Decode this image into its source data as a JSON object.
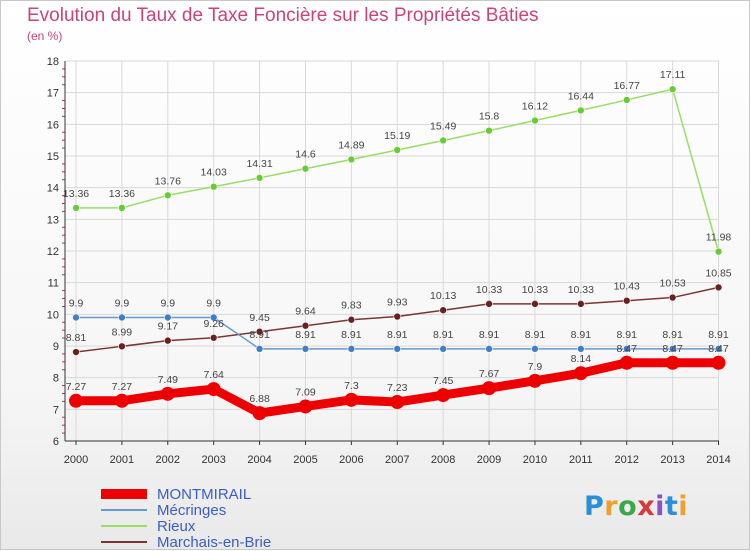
{
  "header": {
    "title": "Evolution du Taux de Taxe Foncière sur les Propriétés Bâties",
    "unit": "(en %)"
  },
  "logo": {
    "text": "Proxiti",
    "colors": [
      "#2a8fd6",
      "#f0a02a",
      "#3aa84a",
      "#d63a3a",
      "#8c4fc8",
      "#2a8fd6",
      "#f0a02a"
    ]
  },
  "colors": {
    "grid": "#d9d9d9",
    "axis": "#333333",
    "title": "#c8447a",
    "legend_text": "#3b5fc0"
  },
  "chart_data": {
    "type": "line",
    "title": "Evolution du Taux de Taxe Foncière sur les Propriétés Bâties",
    "ylabel": "(en %)",
    "xlabel": "",
    "x": [
      "2000",
      "2001",
      "2002",
      "2003",
      "2004",
      "2005",
      "2006",
      "2007",
      "2008",
      "2009",
      "2010",
      "2011",
      "2012",
      "2013",
      "2014"
    ],
    "ylim": [
      6,
      18
    ],
    "yticks": [
      "6",
      "7",
      "8",
      "9",
      "10",
      "11",
      "12",
      "13",
      "14",
      "15",
      "16",
      "17",
      "18"
    ],
    "grid": true,
    "legend_position": "bottom-left",
    "series": [
      {
        "name": "MONTMIRAIL",
        "color": "#ee0000",
        "marker": "#ee0000",
        "values": [
          7.27,
          7.27,
          7.49,
          7.64,
          6.88,
          7.09,
          7.3,
          7.23,
          7.45,
          7.67,
          7.9,
          8.14,
          8.47,
          8.47,
          8.47
        ],
        "labels": [
          "7.27",
          "7.27",
          "7.49",
          "7.64",
          "6.88",
          "7.09",
          "7.3",
          "7.23",
          "7.45",
          "7.67",
          "7.9",
          "8.14",
          "8.47",
          "8.47",
          "8.47"
        ]
      },
      {
        "name": "Mécringes",
        "color": "#6699cc",
        "marker": "#3f7fc4",
        "values": [
          9.9,
          9.9,
          9.9,
          9.9,
          8.91,
          8.91,
          8.91,
          8.91,
          8.91,
          8.91,
          8.91,
          8.91,
          8.91,
          8.91,
          8.91
        ],
        "labels": [
          "9.9",
          "9.9",
          "9.9",
          "9.9",
          "8.91",
          "8.91",
          "8.91",
          "8.91",
          "8.91",
          "8.91",
          "8.91",
          "8.91",
          "8.91",
          "8.91",
          "8.91"
        ]
      },
      {
        "name": "Rieux",
        "color": "#99dd66",
        "marker": "#66cc33",
        "values": [
          13.36,
          13.36,
          13.76,
          14.03,
          14.31,
          14.6,
          14.89,
          15.19,
          15.49,
          15.8,
          16.12,
          16.44,
          16.77,
          17.11,
          11.98
        ],
        "labels": [
          "13.36",
          "13.36",
          "13.76",
          "14.03",
          "14.31",
          "14.6",
          "14.89",
          "15.19",
          "15.49",
          "15.8",
          "16.12",
          "16.44",
          "16.77",
          "17.11",
          "11.98"
        ]
      },
      {
        "name": "Marchais-en-Brie",
        "color": "#7a3535",
        "marker": "#6b1f1f",
        "values": [
          8.81,
          8.99,
          9.17,
          9.26,
          9.45,
          9.64,
          9.83,
          9.93,
          10.13,
          10.33,
          10.33,
          10.33,
          10.43,
          10.53,
          10.85
        ],
        "labels": [
          "8.81",
          "8.99",
          "9.17",
          "9.26",
          "9.45",
          "9.64",
          "9.83",
          "9.93",
          "10.13",
          "10.33",
          "10.33",
          "10.33",
          "10.43",
          "10.53",
          "10.85"
        ]
      }
    ]
  }
}
